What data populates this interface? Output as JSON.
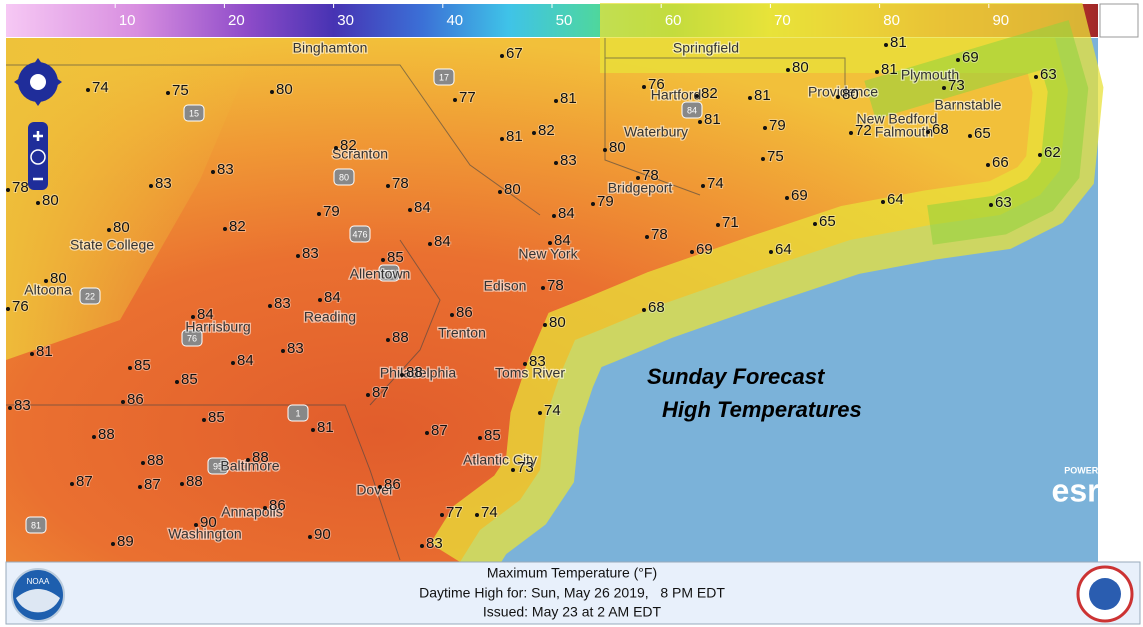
{
  "colorbar": {
    "range": [
      0,
      100
    ],
    "ticks": [
      10,
      20,
      30,
      40,
      50,
      60,
      70,
      80,
      90
    ]
  },
  "overlay": {
    "line1": "Sunday Forecast",
    "line2": "High Temperatures"
  },
  "cities": [
    "Binghamton",
    "Springfield",
    "Plymouth",
    "Providence",
    "Hartford",
    "Barnstable",
    "Waterbury",
    "New Bedford",
    "Falmouth",
    "Scranton",
    "Bridgeport",
    "State College",
    "New York",
    "Allentown",
    "Edison",
    "Altoona",
    "Reading",
    "Harrisburg",
    "Trenton",
    "Philadelphia",
    "Toms River",
    "Baltimore",
    "Atlantic City",
    "Dover",
    "Annapolis",
    "Washington"
  ],
  "highways": [
    "17",
    "15",
    "80",
    "476",
    "78",
    "22",
    "76",
    "1",
    "95",
    "81",
    "84"
  ],
  "stations": [
    74,
    75,
    80,
    67,
    77,
    81,
    76,
    82,
    81,
    80,
    81,
    81,
    69,
    73,
    63,
    80,
    81,
    79,
    72,
    68,
    65,
    66,
    62,
    82,
    81,
    82,
    80,
    83,
    75,
    78,
    74,
    69,
    64,
    63,
    83,
    83,
    78,
    80,
    84,
    79,
    84,
    80,
    78,
    82,
    79,
    80,
    84,
    84,
    71,
    65,
    78,
    69,
    64,
    83,
    85,
    80,
    78,
    84,
    83,
    84,
    86,
    80,
    68,
    76,
    81,
    88,
    83,
    84,
    85,
    85,
    83,
    88,
    87,
    86,
    85,
    74,
    83,
    81,
    87,
    85,
    88,
    88,
    88,
    73,
    87,
    87,
    88,
    86,
    86,
    90,
    77,
    74,
    89,
    90,
    83
  ],
  "attribution": {
    "powered": "POWERED BY",
    "brand": "esri"
  },
  "footer": {
    "title": "Maximum Temperature (°F)",
    "valid": "Daytime High for: Sun, May 26 2019,   8 PM EDT",
    "issued": "Issued: May 23 at 2 AM EDT",
    "noaa": "NOAA"
  }
}
